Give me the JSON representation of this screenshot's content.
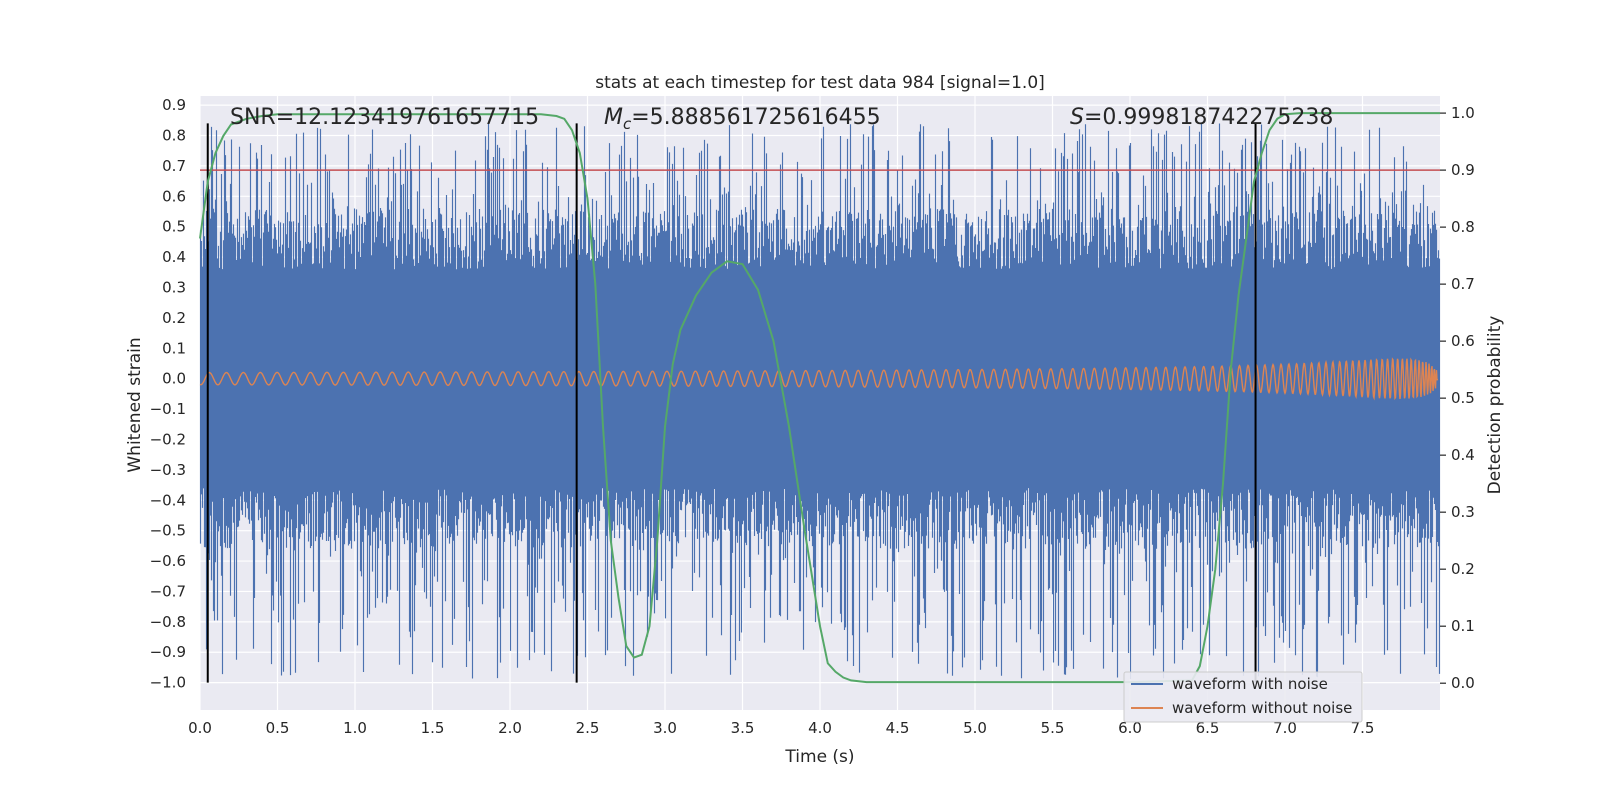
{
  "chart_data": {
    "type": "line",
    "title": "stats at each timestep for test data 984 [signal=1.0]",
    "xlabel": "Time (s)",
    "ylabel": "Whitened strain",
    "ylabel_right": "Detection probability",
    "xlim": [
      0,
      8
    ],
    "ylim": [
      -1.09,
      0.93
    ],
    "ylim_right": [
      -0.047,
      1.03
    ],
    "xticks": [
      "0.0",
      "0.5",
      "1.0",
      "1.5",
      "2.0",
      "2.5",
      "3.0",
      "3.5",
      "4.0",
      "4.5",
      "5.0",
      "5.5",
      "6.0",
      "6.5",
      "7.0",
      "7.5"
    ],
    "yticks": [
      "0.9",
      "0.8",
      "0.7",
      "0.6",
      "0.5",
      "0.4",
      "0.3",
      "0.2",
      "0.1",
      "0.0",
      "−0.1",
      "−0.2",
      "−0.3",
      "−0.4",
      "−0.5",
      "−0.6",
      "−0.7",
      "−0.8",
      "−0.9",
      "−1.0"
    ],
    "yticks_right": [
      "1.0",
      "0.9",
      "0.8",
      "0.7",
      "0.6",
      "0.5",
      "0.4",
      "0.3",
      "0.2",
      "0.1",
      "0.0"
    ],
    "annotations": {
      "snr_prefix": "SNR=",
      "snr_value": "12.123419761657715",
      "mc_symbol": "M",
      "mc_sub": "c",
      "mc_value": "=5.888561725616455",
      "s_symbol": "S",
      "s_value": "=0.999818742275238"
    },
    "threshold": {
      "value": 0.9,
      "axis": "right",
      "color": "#c44e52"
    },
    "vertical_lines": {
      "x": [
        0.05,
        2.43,
        6.81
      ],
      "y_range": [
        -1.0,
        0.84
      ],
      "color": "#000000"
    },
    "series": [
      {
        "name": "waveform with noise",
        "axis": "left",
        "color": "#4c72b0",
        "kind": "noise",
        "envelope_upper": 0.5,
        "envelope_lower": -0.5,
        "peak_max": 0.84,
        "peak_min": -0.99
      },
      {
        "name": "waveform without noise",
        "axis": "left",
        "color": "#dd8452",
        "kind": "chirp",
        "amplitude_start": 0.02,
        "amplitude_end": 0.3,
        "merger_time": 8.0
      },
      {
        "name": "detection probability",
        "axis": "right",
        "color": "#55a868",
        "x": [
          0.0,
          0.05,
          0.1,
          0.15,
          0.2,
          0.3,
          0.4,
          0.5,
          1.0,
          1.5,
          2.0,
          2.2,
          2.3,
          2.35,
          2.4,
          2.45,
          2.5,
          2.55,
          2.6,
          2.65,
          2.7,
          2.75,
          2.8,
          2.85,
          2.9,
          2.95,
          3.0,
          3.05,
          3.1,
          3.2,
          3.3,
          3.4,
          3.5,
          3.6,
          3.7,
          3.8,
          3.9,
          4.0,
          4.05,
          4.1,
          4.15,
          4.2,
          4.3,
          5.0,
          6.0,
          6.4,
          6.45,
          6.5,
          6.55,
          6.6,
          6.65,
          6.7,
          6.75,
          6.8,
          6.85,
          6.9,
          6.95,
          7.0,
          7.1,
          7.5,
          8.0
        ],
        "y": [
          0.78,
          0.88,
          0.93,
          0.96,
          0.98,
          0.99,
          0.995,
          0.998,
          0.998,
          0.998,
          0.998,
          0.998,
          0.995,
          0.99,
          0.97,
          0.93,
          0.85,
          0.7,
          0.45,
          0.25,
          0.15,
          0.065,
          0.045,
          0.05,
          0.1,
          0.25,
          0.45,
          0.56,
          0.62,
          0.68,
          0.72,
          0.74,
          0.735,
          0.69,
          0.6,
          0.45,
          0.27,
          0.1,
          0.035,
          0.02,
          0.01,
          0.005,
          0.002,
          0.002,
          0.002,
          0.005,
          0.03,
          0.1,
          0.2,
          0.35,
          0.55,
          0.68,
          0.78,
          0.88,
          0.93,
          0.97,
          0.99,
          0.998,
          1.0,
          1.0,
          1.0
        ]
      }
    ],
    "legend": {
      "placement": "lower-right",
      "entries": [
        "waveform with noise",
        "waveform without noise"
      ]
    },
    "grid": true,
    "colors": {
      "plot_bg": "#eaeaf2",
      "grid": "#ffffff",
      "noise": "#4c72b0",
      "clean": "#dd8452",
      "prob": "#55a868",
      "threshold": "#c44e52"
    }
  }
}
